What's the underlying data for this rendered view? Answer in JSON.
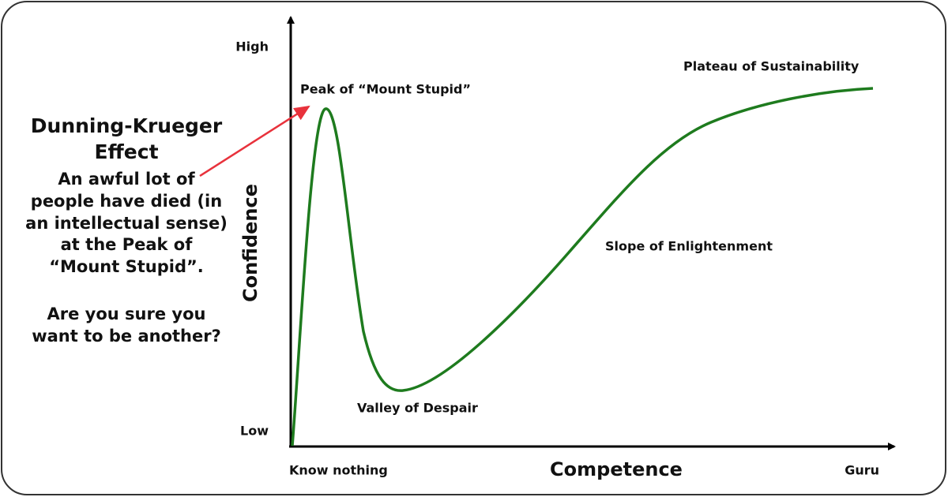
{
  "sidebar": {
    "title": [
      "Dunning-Krueger",
      "Effect"
    ],
    "body": [
      "An awful lot of",
      "people have died (in",
      "an intellectual sense)",
      "at the Peak of",
      "“Mount Stupid”."
    ],
    "question": [
      "Are you sure you",
      "want to be another?"
    ]
  },
  "axes": {
    "y_label": "Confidence",
    "y_high": "High",
    "y_low": "Low",
    "x_label": "Competence",
    "x_start": "Know nothing",
    "x_end": "Guru"
  },
  "annotations": [
    "Peak of “Mount Stupid”",
    "Valley of Despair",
    "Slope of Enlightenment",
    "Plateau of Sustainability"
  ]
}
